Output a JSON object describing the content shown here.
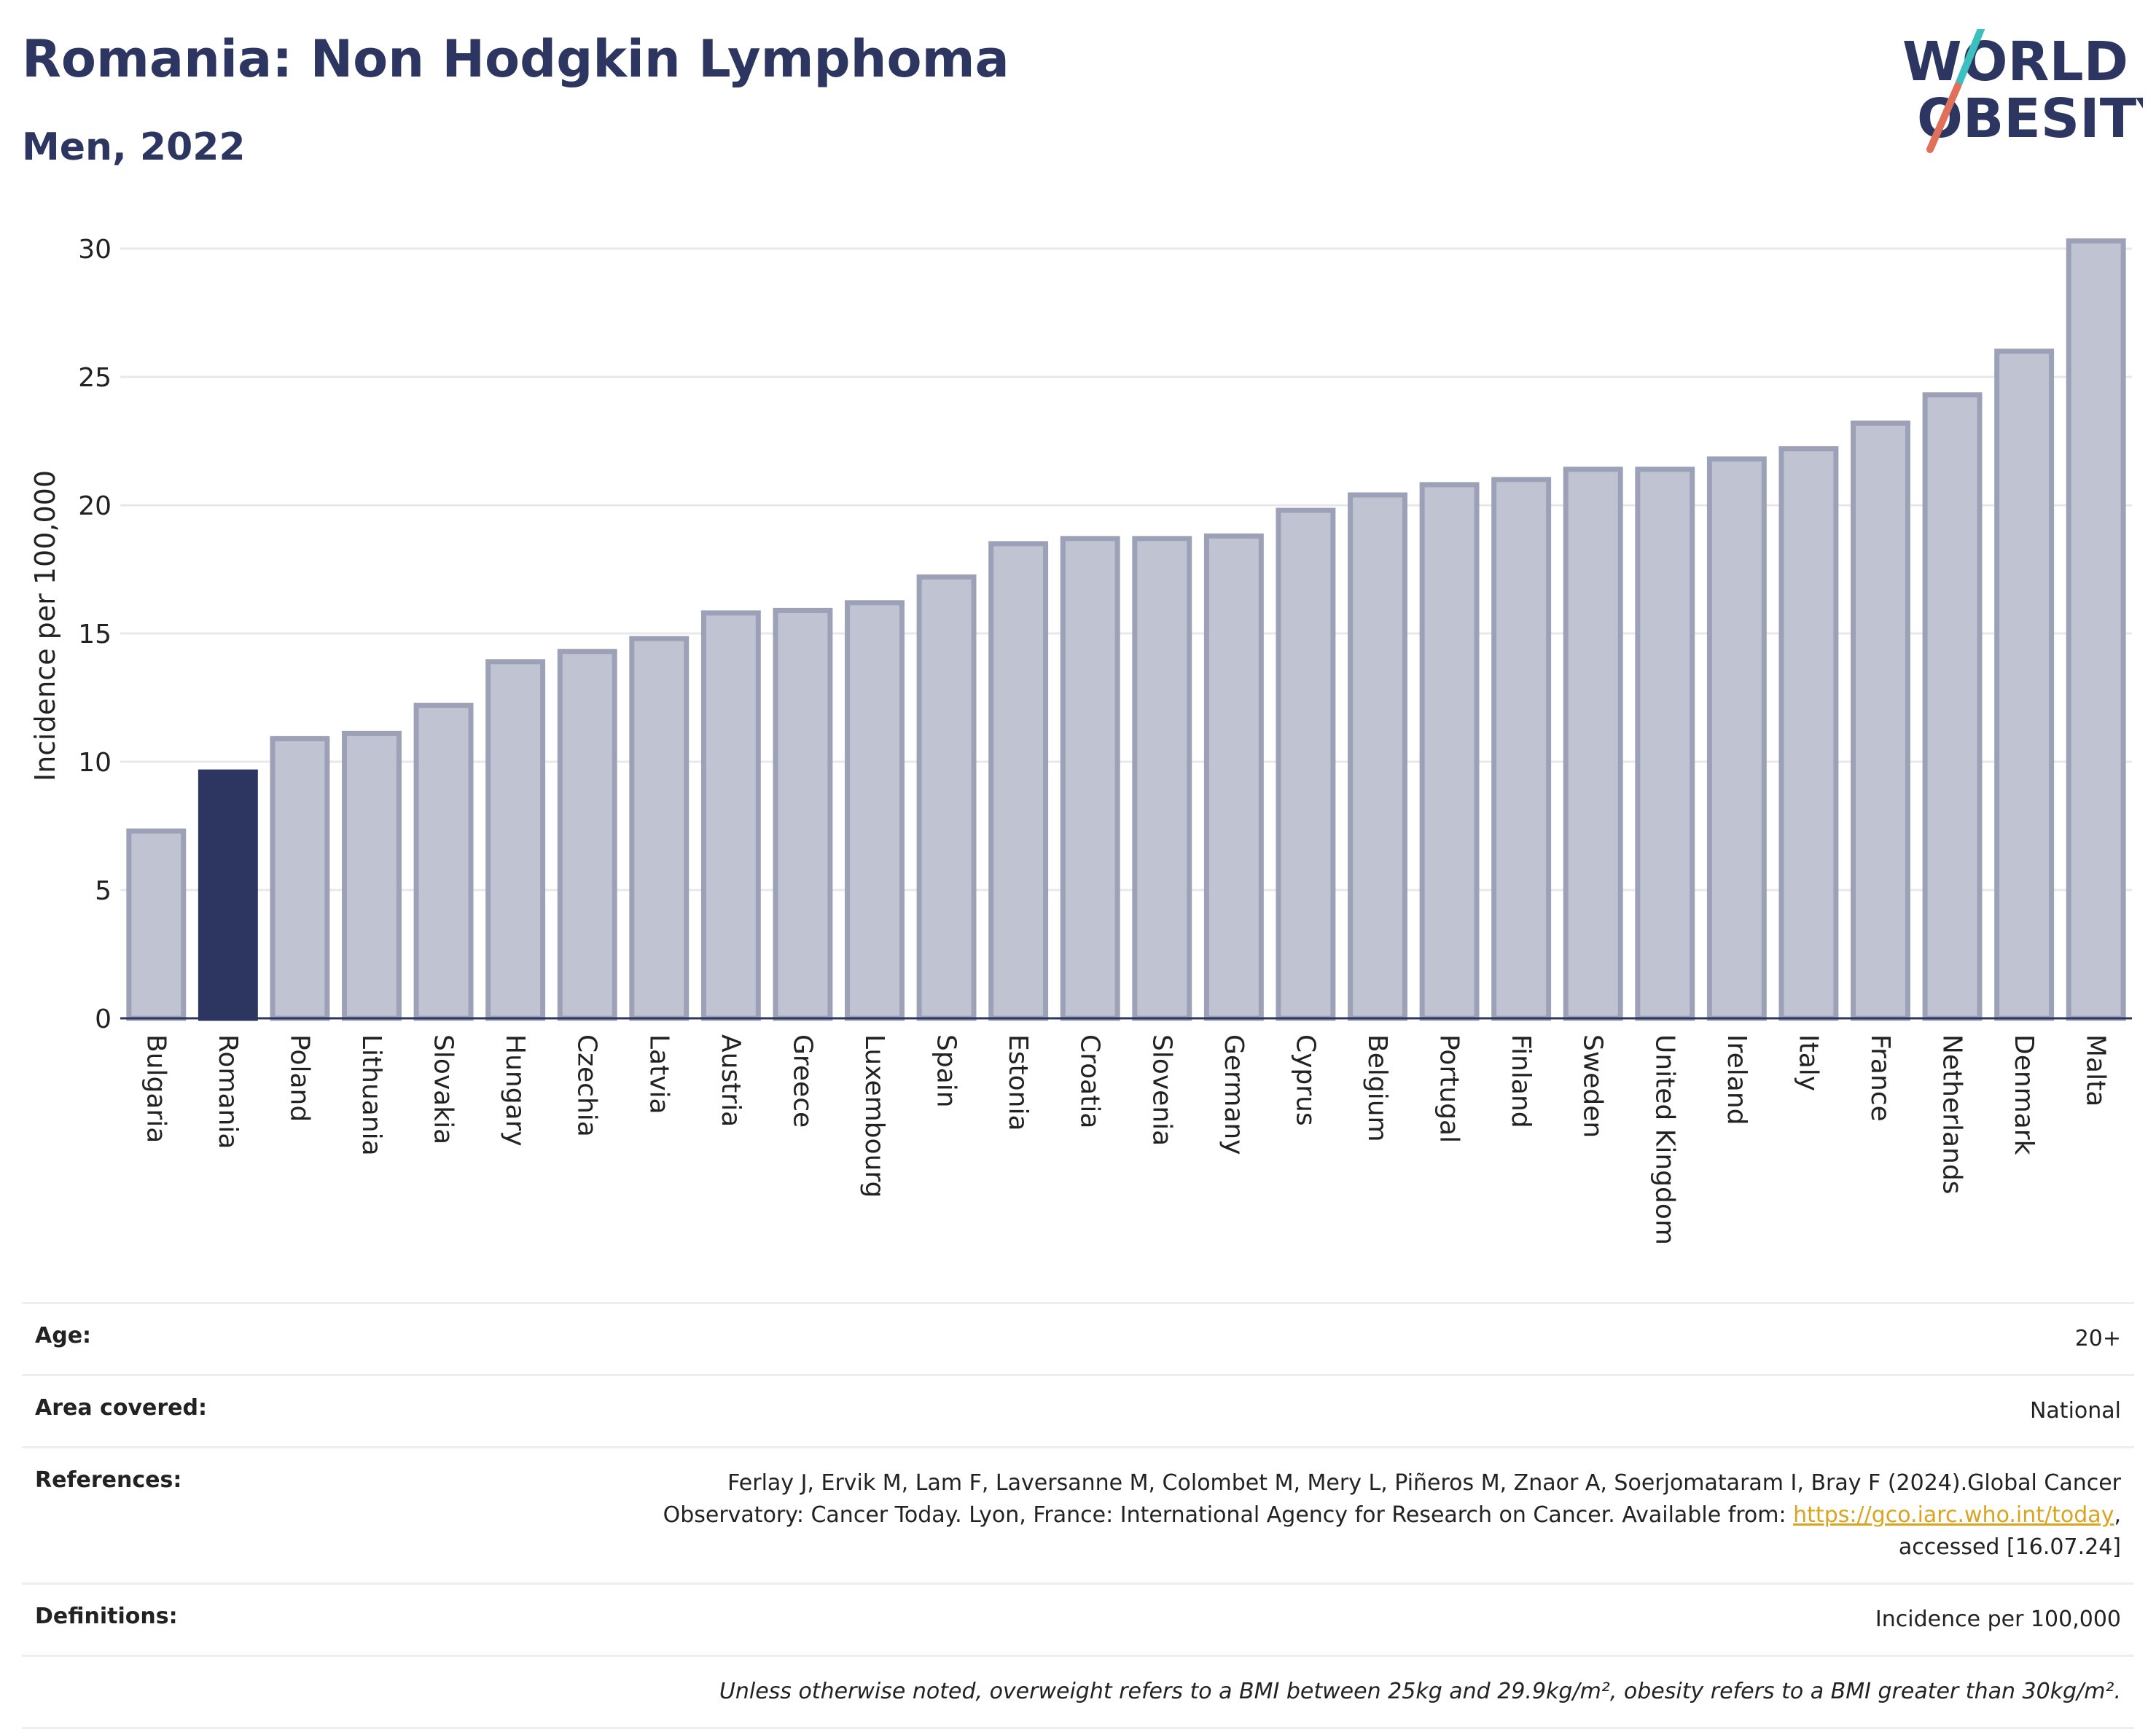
{
  "header": {
    "title": "Romania: Non Hodgkin Lymphoma",
    "subtitle": "Men, 2022"
  },
  "logo": {
    "line1": "WORLD",
    "line2": "OBESITY",
    "accent_colors": [
      "#3bbfbf",
      "#e0705a"
    ]
  },
  "colors": {
    "bar_default": "#c0c4d2",
    "bar_border": "#9ca1b8",
    "bar_highlight": "#2c3660",
    "title": "#2c3660",
    "link": "#d9a520"
  },
  "chart_data": {
    "type": "bar",
    "ylabel": "Incidence per 100,000",
    "xlabel": "",
    "ylim": [
      0,
      30.6
    ],
    "yticks": [
      0,
      5,
      10,
      15,
      20,
      25,
      30
    ],
    "grid": true,
    "highlight": "Romania",
    "categories": [
      "Bulgaria",
      "Romania",
      "Poland",
      "Lithuania",
      "Slovakia",
      "Hungary",
      "Czechia",
      "Latvia",
      "Austria",
      "Greece",
      "Luxembourg",
      "Spain",
      "Estonia",
      "Croatia",
      "Slovenia",
      "Germany",
      "Cyprus",
      "Belgium",
      "Portugal",
      "Finland",
      "Sweden",
      "United Kingdom",
      "Ireland",
      "Italy",
      "France",
      "Netherlands",
      "Denmark",
      "Malta"
    ],
    "values": [
      7.3,
      9.6,
      10.9,
      11.1,
      12.2,
      13.9,
      14.3,
      14.8,
      15.8,
      15.9,
      16.2,
      17.2,
      18.5,
      18.7,
      18.7,
      18.8,
      19.8,
      20.4,
      20.8,
      21.0,
      21.4,
      21.4,
      21.8,
      22.2,
      23.2,
      24.3,
      26.0,
      30.3
    ]
  },
  "info": {
    "age_label": "Age:",
    "age_value": "20+",
    "area_label": "Area covered:",
    "area_value": "National",
    "references_label": "References:",
    "references_line1": "Ferlay J, Ervik M, Lam F, Laversanne M, Colombet M, Mery L, Piñeros M, Znaor A, Soerjomataram I, Bray F (2024).Global Cancer",
    "references_line2_pre": "Observatory: Cancer Today. Lyon, France: International Agency for Research on Cancer. Available from: ",
    "references_link": "https://gco.iarc.who.int/today",
    "references_line2_post": ",",
    "references_line3": "accessed [16.07.24]",
    "definitions_label": "Definitions:",
    "definitions_value": "Incidence per 100,000",
    "note": "Unless otherwise noted, overweight refers to a BMI between 25kg and 29.9kg/m², obesity refers to a BMI greater than 30kg/m²."
  }
}
